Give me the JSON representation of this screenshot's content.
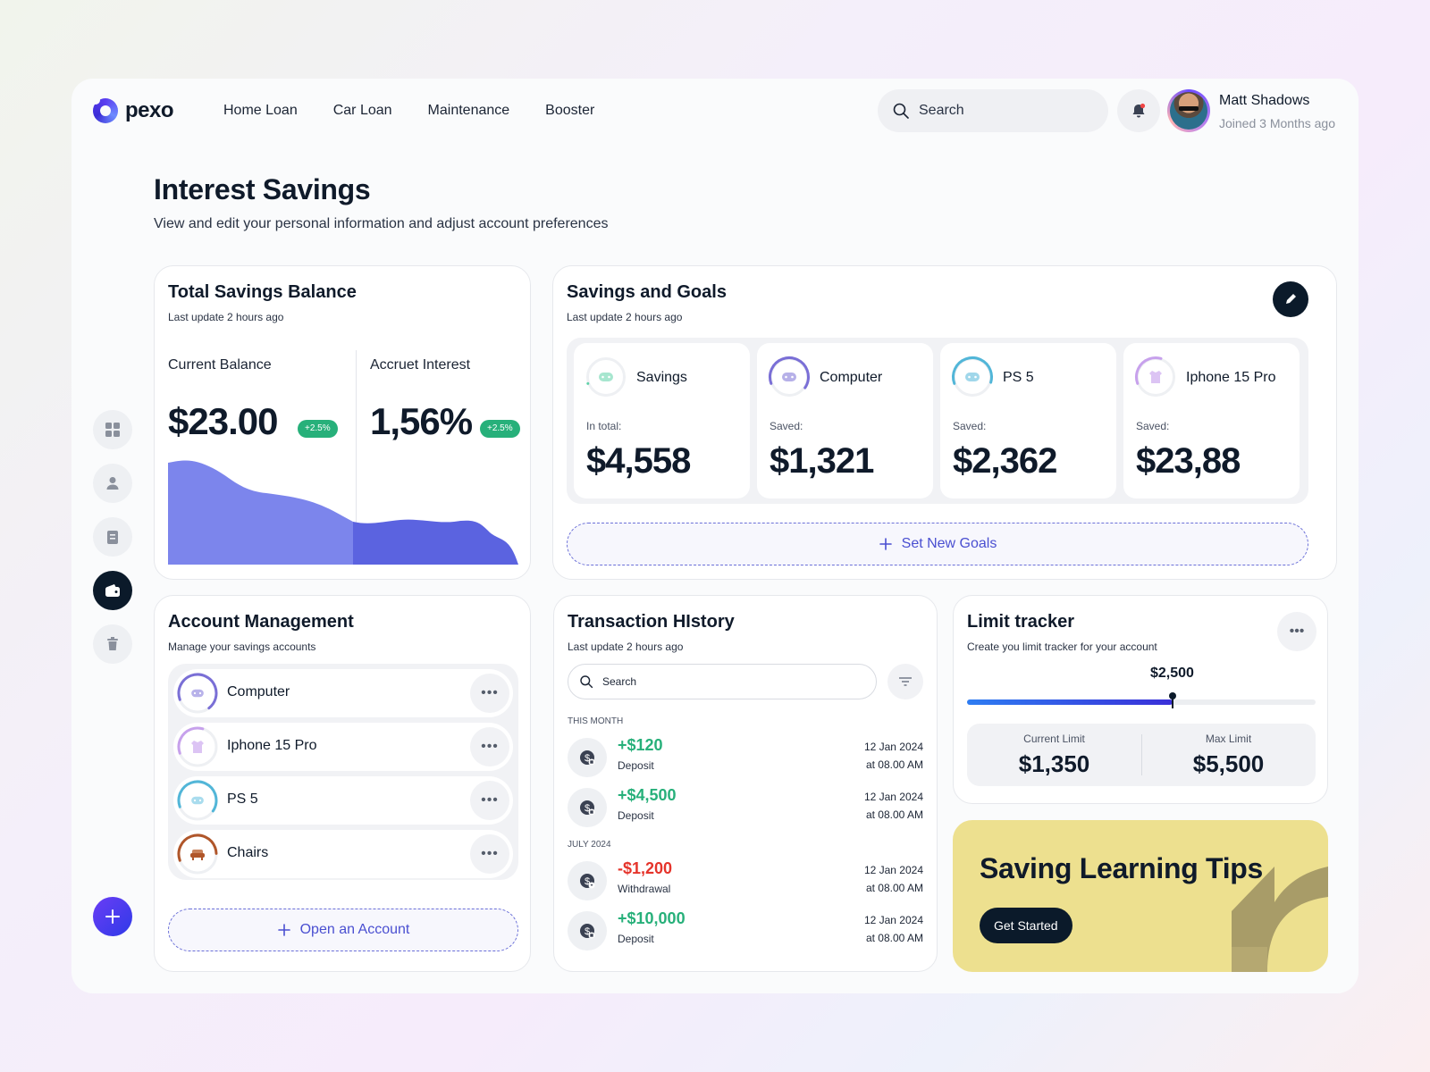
{
  "brand": {
    "name": "pexo"
  },
  "nav": [
    "Home Loan",
    "Car Loan",
    "Maintenance",
    "Booster"
  ],
  "search": {
    "placeholder": "Search"
  },
  "user": {
    "name": "Matt Shadows",
    "joined": "Joined 3 Months ago"
  },
  "page": {
    "title": "Interest Savings",
    "subtitle": "View and edit your personal information and adjust account preferences"
  },
  "sidebar": {
    "icons": [
      "dashboard-icon",
      "user-icon",
      "clipboard-icon",
      "wallet-icon",
      "trash-icon"
    ],
    "active_index": 3
  },
  "total_savings": {
    "title": "Total Savings Balance",
    "updated": "Last update 2 hours ago",
    "current_label": "Current Balance",
    "current_value": "$23.00",
    "current_badge": "+2.5%",
    "interest_label": "Accruet Interest",
    "interest_value": "1,56%",
    "interest_badge": "+2.5%",
    "colors": {
      "left_area": "#7c85ec",
      "right_area": "#5b63e0"
    }
  },
  "goals": {
    "title": "Savings and Goals",
    "updated": "Last update 2 hours ago",
    "items": [
      {
        "name": "Savings",
        "label": "In total:",
        "value": "$4,558",
        "icon": "gamepad-icon",
        "color": "#5fd1a8",
        "progress": 0
      },
      {
        "name": "Computer",
        "label": "Saved:",
        "value": "$1,321",
        "icon": "gamepad-icon",
        "color": "#7a6fd6",
        "progress": 0.65
      },
      {
        "name": "PS 5",
        "label": "Saved:",
        "value": "$2,362",
        "icon": "gamepad-icon",
        "color": "#52b6d8",
        "progress": 0.6
      },
      {
        "name": "Iphone 15 Pro",
        "label": "Saved:",
        "value": "$23,88",
        "icon": "shirt-icon",
        "color": "#c7a1ec",
        "progress": 0.35
      }
    ],
    "new_goal_label": "Set New Goals"
  },
  "accounts": {
    "title": "Account Management",
    "subtitle": "Manage your savings accounts",
    "items": [
      {
        "name": "Computer",
        "icon": "gamepad-icon",
        "color": "#7a6fd6",
        "progress": 0.7
      },
      {
        "name": "Iphone 15 Pro",
        "icon": "shirt-icon",
        "color": "#c7a1ec",
        "progress": 0.35
      },
      {
        "name": "PS 5",
        "icon": "gamepad-icon",
        "color": "#52b6d8",
        "progress": 0.65
      },
      {
        "name": "Chairs",
        "icon": "sofa-icon",
        "color": "#b0562a",
        "progress": 0.55
      }
    ],
    "open_label": "Open an Account"
  },
  "transactions": {
    "title": "Transaction HIstory",
    "updated": "Last update 2 hours ago",
    "search_placeholder": "Search",
    "groups": [
      {
        "label": "THIS MONTH",
        "items": [
          {
            "amount": "+$120",
            "type": "Deposit",
            "date": "12 Jan 2024",
            "time": "at 08.00 AM",
            "sign": "pos"
          },
          {
            "amount": "+$4,500",
            "type": "Deposit",
            "date": "12 Jan 2024",
            "time": "at 08.00 AM",
            "sign": "pos"
          }
        ]
      },
      {
        "label": "JULY 2024",
        "items": [
          {
            "amount": "-$1,200",
            "type": "Withdrawal",
            "date": "12 Jan 2024",
            "time": "at 08.00 AM",
            "sign": "neg"
          },
          {
            "amount": "+$10,000",
            "type": "Deposit",
            "date": "12 Jan 2024",
            "time": "at 08.00 AM",
            "sign": "pos"
          }
        ]
      }
    ]
  },
  "limit": {
    "title": "Limit tracker",
    "subtitle": "Create you limit tracker for your account",
    "marker_value": "$2,500",
    "progress": 0.59,
    "current_label": "Current Limit",
    "current_value": "$1,350",
    "max_label": "Max Limit",
    "max_value": "$5,500"
  },
  "tips": {
    "title": "Saving Learning Tips",
    "button": "Get Started"
  }
}
